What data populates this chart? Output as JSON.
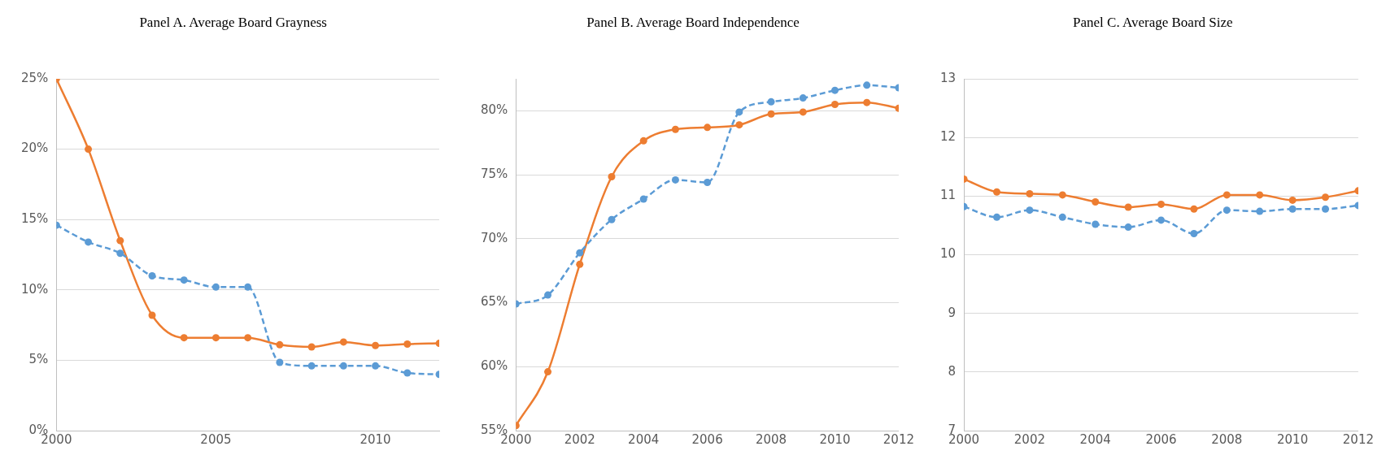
{
  "chart_data": [
    {
      "type": "line",
      "title": "Panel A. Average Board Grayness",
      "x": [
        2000,
        2001,
        2002,
        2003,
        2004,
        2005,
        2006,
        2007,
        2008,
        2009,
        2010,
        2011,
        2012
      ],
      "xlim": [
        2000,
        2012
      ],
      "xticks": [
        2000,
        2005,
        2010
      ],
      "ylim": [
        0,
        25
      ],
      "yticks": [
        {
          "value": 0,
          "label": "0%"
        },
        {
          "value": 5,
          "label": "5%"
        },
        {
          "value": 10,
          "label": "10%"
        },
        {
          "value": 15,
          "label": "15%"
        },
        {
          "value": 20,
          "label": "20%"
        },
        {
          "value": 25,
          "label": "25%"
        }
      ],
      "grid": "y",
      "marker": "circle",
      "legend": false,
      "series": [
        {
          "color": "#5b9bd5",
          "line_style": "dashed",
          "values": [
            14.6,
            13.4,
            12.6,
            11.0,
            10.7,
            10.2,
            10.2,
            4.85,
            4.6,
            4.6,
            4.6,
            4.1,
            4.0
          ]
        },
        {
          "color": "#ed7d31",
          "line_style": "solid",
          "values": [
            25,
            20,
            13.5,
            8.2,
            6.6,
            6.6,
            6.6,
            6.1,
            5.95,
            6.3,
            6.05,
            6.15,
            6.2
          ]
        }
      ]
    },
    {
      "type": "line",
      "title": "Panel B. Average Board Independence",
      "x": [
        2000,
        2001,
        2002,
        2003,
        2004,
        2005,
        2006,
        2007,
        2008,
        2009,
        2010,
        2011,
        2012
      ],
      "xlim": [
        2000,
        2012
      ],
      "xticks": [
        2000,
        2002,
        2004,
        2006,
        2008,
        2010,
        2012
      ],
      "ylim": [
        55,
        82.5
      ],
      "yticks": [
        {
          "value": 55,
          "label": "55%"
        },
        {
          "value": 60,
          "label": "60%"
        },
        {
          "value": 65,
          "label": "65%"
        },
        {
          "value": 70,
          "label": "70%"
        },
        {
          "value": 75,
          "label": "75%"
        },
        {
          "value": 80,
          "label": "80%"
        }
      ],
      "grid": "y",
      "marker": "circle",
      "legend": false,
      "series": [
        {
          "color": "#5b9bd5",
          "line_style": "dashed",
          "values": [
            64.9,
            65.6,
            68.9,
            71.5,
            73.1,
            74.6,
            74.4,
            79.9,
            80.7,
            81.0,
            81.6,
            82.0,
            81.8
          ]
        },
        {
          "color": "#ed7d31",
          "line_style": "solid",
          "values": [
            55.4,
            59.6,
            68.0,
            74.85,
            77.65,
            78.55,
            78.7,
            78.9,
            79.75,
            79.9,
            80.5,
            80.65,
            80.2
          ]
        }
      ]
    },
    {
      "type": "line",
      "title": "Panel C. Average Board Size",
      "x": [
        2000,
        2001,
        2002,
        2003,
        2004,
        2005,
        2006,
        2007,
        2008,
        2009,
        2010,
        2011,
        2012
      ],
      "xlim": [
        2000,
        2012
      ],
      "xticks": [
        2000,
        2002,
        2004,
        2006,
        2008,
        2010,
        2012
      ],
      "ylim": [
        7,
        13
      ],
      "yticks": [
        7,
        8,
        9,
        10,
        11,
        12,
        13
      ],
      "grid": "y",
      "marker": "circle",
      "legend": false,
      "series": [
        {
          "color": "#5b9bd5",
          "line_style": "dashed",
          "values": [
            10.82,
            10.64,
            10.76,
            10.64,
            10.52,
            10.47,
            10.59,
            10.36,
            10.76,
            10.74,
            10.78,
            10.78,
            10.84
          ]
        },
        {
          "color": "#ed7d31",
          "line_style": "solid",
          "values": [
            11.29,
            11.07,
            11.04,
            11.02,
            10.9,
            10.81,
            10.86,
            10.78,
            11.02,
            11.02,
            10.93,
            10.98,
            11.09
          ]
        }
      ]
    }
  ]
}
